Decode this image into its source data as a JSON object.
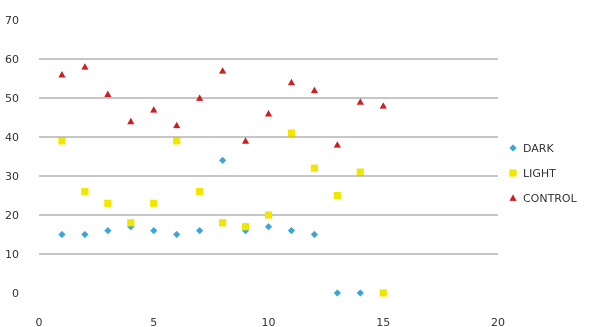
{
  "chart_data": {
    "type": "scatter",
    "title": "",
    "xlabel": "",
    "ylabel": "",
    "xlim": [
      0,
      20
    ],
    "ylim": [
      0,
      70
    ],
    "x_ticks": [
      0,
      5,
      10,
      15,
      20
    ],
    "y_ticks": [
      0,
      10,
      20,
      30,
      40,
      50,
      60,
      70
    ],
    "grid": "horizontal",
    "legend_position": "right",
    "series": [
      {
        "name": "DARK",
        "color": "#3aa6d8",
        "marker": "diamond",
        "points": [
          [
            1,
            15
          ],
          [
            2,
            15
          ],
          [
            3,
            16
          ],
          [
            4,
            17
          ],
          [
            5,
            16
          ],
          [
            6,
            15
          ],
          [
            7,
            16
          ],
          [
            8,
            34
          ],
          [
            9,
            16
          ],
          [
            10,
            17
          ],
          [
            11,
            16
          ],
          [
            12,
            15
          ],
          [
            13,
            0
          ],
          [
            14,
            0
          ]
        ]
      },
      {
        "name": "LIGHT",
        "color": "#f2e600",
        "marker": "square",
        "points": [
          [
            1,
            39
          ],
          [
            2,
            26
          ],
          [
            3,
            23
          ],
          [
            4,
            18
          ],
          [
            5,
            23
          ],
          [
            6,
            39
          ],
          [
            7,
            26
          ],
          [
            8,
            18
          ],
          [
            9,
            17
          ],
          [
            10,
            20
          ],
          [
            11,
            41
          ],
          [
            12,
            32
          ],
          [
            13,
            25
          ],
          [
            14,
            31
          ],
          [
            15,
            0
          ]
        ]
      },
      {
        "name": "CONTROL",
        "color": "#cc1f1f",
        "marker": "triangle",
        "points": [
          [
            1,
            56
          ],
          [
            2,
            58
          ],
          [
            3,
            51
          ],
          [
            4,
            44
          ],
          [
            5,
            47
          ],
          [
            6,
            43
          ],
          [
            7,
            50
          ],
          [
            8,
            57
          ],
          [
            9,
            39
          ],
          [
            10,
            46
          ],
          [
            11,
            54
          ],
          [
            12,
            52
          ],
          [
            13,
            38
          ],
          [
            14,
            49
          ],
          [
            15,
            48
          ]
        ]
      }
    ]
  }
}
